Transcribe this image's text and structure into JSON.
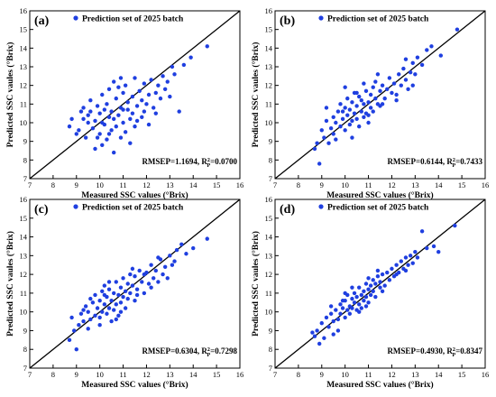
{
  "figure": {
    "xlabel": "Measured SSC values (°Brix)",
    "ylabel": "Predicted SSC vaules (°Brix)",
    "legend": "Prediction set of 2025 batch",
    "ticks": [
      "7",
      "8",
      "9",
      "10",
      "11",
      "12",
      "13",
      "14",
      "15",
      "16"
    ],
    "point_color": "#1f3fe0",
    "line_color": "#000000"
  },
  "chart_data": [
    {
      "type": "scatter",
      "panel": "(a)",
      "legend": "Prediction set of 2025 batch",
      "xlabel": "Measured SSC values (°Brix)",
      "ylabel": "Predicted SSC vaules (°Brix)",
      "xlim": [
        7,
        16
      ],
      "ylim": [
        7,
        16
      ],
      "reference_line": "y = x",
      "stats": {
        "rmsep_text": "RMSEP=1.1694, R",
        "r2_sup": "2",
        "r2_sub": "P",
        "r2_text": "=0.0700"
      },
      "points": [
        [
          8.7,
          9.8
        ],
        [
          8.8,
          10.2
        ],
        [
          9.0,
          9.4
        ],
        [
          9.1,
          9.6
        ],
        [
          9.2,
          10.6
        ],
        [
          9.3,
          10.8
        ],
        [
          9.4,
          9.2
        ],
        [
          9.5,
          10.0
        ],
        [
          9.5,
          10.4
        ],
        [
          9.6,
          11.2
        ],
        [
          9.7,
          9.7
        ],
        [
          9.8,
          10.1
        ],
        [
          9.8,
          8.6
        ],
        [
          9.9,
          10.9
        ],
        [
          10.0,
          9.4
        ],
        [
          10.0,
          10.5
        ],
        [
          10.1,
          11.5
        ],
        [
          10.1,
          8.8
        ],
        [
          10.2,
          9.9
        ],
        [
          10.2,
          10.7
        ],
        [
          10.3,
          11.0
        ],
        [
          10.3,
          9.1
        ],
        [
          10.4,
          10.3
        ],
        [
          10.4,
          11.8
        ],
        [
          10.5,
          9.6
        ],
        [
          10.5,
          10.6
        ],
        [
          10.6,
          12.2
        ],
        [
          10.6,
          8.4
        ],
        [
          10.7,
          11.3
        ],
        [
          10.7,
          9.8
        ],
        [
          10.8,
          10.4
        ],
        [
          10.8,
          11.9
        ],
        [
          10.9,
          9.2
        ],
        [
          10.9,
          10.8
        ],
        [
          11.0,
          11.6
        ],
        [
          11.0,
          10.0
        ],
        [
          11.1,
          12.0
        ],
        [
          11.1,
          9.5
        ],
        [
          11.2,
          10.7
        ],
        [
          11.2,
          11.1
        ],
        [
          11.3,
          10.2
        ],
        [
          11.3,
          8.9
        ],
        [
          11.4,
          11.4
        ],
        [
          11.4,
          10.5
        ],
        [
          11.5,
          12.4
        ],
        [
          11.5,
          9.8
        ],
        [
          11.6,
          10.9
        ],
        [
          11.7,
          11.7
        ],
        [
          11.8,
          10.3
        ],
        [
          11.8,
          11.2
        ],
        [
          11.9,
          12.1
        ],
        [
          11.9,
          10.6
        ],
        [
          12.0,
          11.0
        ],
        [
          12.1,
          11.5
        ],
        [
          12.1,
          9.9
        ],
        [
          12.2,
          12.3
        ],
        [
          12.3,
          10.8
        ],
        [
          12.4,
          11.6
        ],
        [
          12.5,
          12.0
        ],
        [
          12.6,
          11.3
        ],
        [
          12.7,
          12.5
        ],
        [
          12.8,
          11.8
        ],
        [
          12.9,
          12.2
        ],
        [
          13.0,
          11.4
        ],
        [
          13.1,
          13.0
        ],
        [
          13.2,
          12.6
        ],
        [
          13.4,
          10.6
        ],
        [
          13.6,
          13.1
        ],
        [
          13.9,
          13.5
        ],
        [
          14.6,
          14.1
        ],
        [
          9.6,
          10.6
        ],
        [
          10.1,
          10.0
        ],
        [
          10.6,
          10.2
        ],
        [
          11.0,
          10.7
        ],
        [
          9.3,
          10.2
        ],
        [
          10.4,
          9.4
        ],
        [
          11.6,
          10.1
        ],
        [
          12.4,
          10.5
        ],
        [
          10.9,
          12.4
        ],
        [
          9.9,
          9.2
        ]
      ]
    },
    {
      "type": "scatter",
      "panel": "(b)",
      "legend": "Prediction set of 2025 batch",
      "xlabel": "Measured SSC values (°Brix)",
      "ylabel": "Predicted SSC vaules (°Brix)",
      "xlim": [
        7,
        16
      ],
      "ylim": [
        7,
        16
      ],
      "reference_line": "y = x",
      "stats": {
        "rmsep_text": "RMSEP=0.6144, R",
        "r2_sup": "2",
        "r2_sub": "P",
        "r2_text": "=0.7433"
      },
      "points": [
        [
          8.7,
          8.6
        ],
        [
          8.8,
          8.9
        ],
        [
          8.9,
          7.8
        ],
        [
          9.0,
          9.6
        ],
        [
          9.1,
          9.2
        ],
        [
          9.2,
          10.1
        ],
        [
          9.3,
          8.9
        ],
        [
          9.4,
          9.7
        ],
        [
          9.5,
          10.3
        ],
        [
          9.5,
          9.4
        ],
        [
          9.6,
          10.0
        ],
        [
          9.7,
          10.6
        ],
        [
          9.8,
          9.8
        ],
        [
          9.8,
          11.0
        ],
        [
          9.9,
          10.2
        ],
        [
          10.0,
          9.6
        ],
        [
          10.0,
          10.8
        ],
        [
          10.1,
          10.4
        ],
        [
          10.1,
          11.3
        ],
        [
          10.2,
          9.9
        ],
        [
          10.2,
          10.7
        ],
        [
          10.3,
          11.1
        ],
        [
          10.3,
          10.1
        ],
        [
          10.4,
          10.5
        ],
        [
          10.4,
          11.6
        ],
        [
          10.5,
          10.2
        ],
        [
          10.5,
          10.9
        ],
        [
          10.6,
          11.4
        ],
        [
          10.6,
          9.8
        ],
        [
          10.7,
          10.6
        ],
        [
          10.7,
          11.2
        ],
        [
          10.8,
          10.3
        ],
        [
          10.8,
          11.0
        ],
        [
          10.9,
          11.7
        ],
        [
          10.9,
          10.5
        ],
        [
          11.0,
          11.1
        ],
        [
          11.0,
          10.0
        ],
        [
          11.1,
          11.5
        ],
        [
          11.1,
          10.8
        ],
        [
          11.2,
          11.9
        ],
        [
          11.2,
          10.6
        ],
        [
          11.3,
          11.3
        ],
        [
          11.3,
          12.2
        ],
        [
          11.4,
          11.0
        ],
        [
          11.5,
          11.7
        ],
        [
          11.5,
          10.9
        ],
        [
          11.6,
          12.0
        ],
        [
          11.7,
          11.3
        ],
        [
          11.8,
          11.8
        ],
        [
          11.9,
          12.4
        ],
        [
          12.0,
          11.6
        ],
        [
          12.1,
          12.1
        ],
        [
          12.2,
          11.5
        ],
        [
          12.3,
          12.6
        ],
        [
          12.4,
          12.0
        ],
        [
          12.5,
          12.9
        ],
        [
          12.6,
          12.3
        ],
        [
          12.7,
          11.8
        ],
        [
          12.8,
          12.7
        ],
        [
          12.9,
          13.2
        ],
        [
          13.0,
          12.6
        ],
        [
          13.1,
          13.5
        ],
        [
          13.3,
          13.1
        ],
        [
          13.5,
          13.9
        ],
        [
          13.7,
          14.1
        ],
        [
          14.1,
          13.6
        ],
        [
          14.8,
          15.0
        ],
        [
          9.6,
          9.1
        ],
        [
          10.0,
          11.9
        ],
        [
          10.5,
          11.6
        ],
        [
          11.0,
          10.4
        ],
        [
          11.4,
          12.6
        ],
        [
          12.2,
          11.2
        ],
        [
          12.6,
          13.4
        ],
        [
          10.3,
          9.2
        ],
        [
          10.8,
          12.1
        ],
        [
          11.6,
          11.0
        ],
        [
          9.2,
          10.8
        ],
        [
          12.9,
          12.0
        ],
        [
          9.9,
          10.6
        ]
      ]
    },
    {
      "type": "scatter",
      "panel": "(c)",
      "legend": "Prediction set of 2025 batch",
      "xlabel": "Measured SSC values (°Brix)",
      "ylabel": "Predicted SSC vaules (°Brix)",
      "xlim": [
        7,
        16
      ],
      "ylim": [
        7,
        16
      ],
      "reference_line": "y = x",
      "stats": {
        "rmsep_text": "RMSEP=0.6304, R",
        "r2_sup": "2",
        "r2_sub": "P",
        "r2_text": "=0.7298"
      },
      "points": [
        [
          8.7,
          8.5
        ],
        [
          8.8,
          9.7
        ],
        [
          8.9,
          9.0
        ],
        [
          9.0,
          8.0
        ],
        [
          9.1,
          9.3
        ],
        [
          9.2,
          9.9
        ],
        [
          9.3,
          9.5
        ],
        [
          9.4,
          10.3
        ],
        [
          9.5,
          9.1
        ],
        [
          9.5,
          10.0
        ],
        [
          9.6,
          9.6
        ],
        [
          9.7,
          10.5
        ],
        [
          9.8,
          9.8
        ],
        [
          9.8,
          10.9
        ],
        [
          9.9,
          10.2
        ],
        [
          10.0,
          9.7
        ],
        [
          10.0,
          10.6
        ],
        [
          10.1,
          11.1
        ],
        [
          10.1,
          10.0
        ],
        [
          10.2,
          10.4
        ],
        [
          10.2,
          11.4
        ],
        [
          10.3,
          9.9
        ],
        [
          10.3,
          10.8
        ],
        [
          10.4,
          10.2
        ],
        [
          10.4,
          11.2
        ],
        [
          10.5,
          10.6
        ],
        [
          10.5,
          9.5
        ],
        [
          10.6,
          11.0
        ],
        [
          10.6,
          10.1
        ],
        [
          10.7,
          11.6
        ],
        [
          10.7,
          10.4
        ],
        [
          10.8,
          10.9
        ],
        [
          10.8,
          9.8
        ],
        [
          10.9,
          11.3
        ],
        [
          10.9,
          10.5
        ],
        [
          11.0,
          11.8
        ],
        [
          11.0,
          10.8
        ],
        [
          11.1,
          11.1
        ],
        [
          11.1,
          10.2
        ],
        [
          11.2,
          11.5
        ],
        [
          11.2,
          10.7
        ],
        [
          11.3,
          12.0
        ],
        [
          11.3,
          11.0
        ],
        [
          11.4,
          11.4
        ],
        [
          11.5,
          10.6
        ],
        [
          11.5,
          11.9
        ],
        [
          11.6,
          11.2
        ],
        [
          11.7,
          12.2
        ],
        [
          11.8,
          11.6
        ],
        [
          11.9,
          11.0
        ],
        [
          12.0,
          12.1
        ],
        [
          12.1,
          11.5
        ],
        [
          12.2,
          12.5
        ],
        [
          12.3,
          11.8
        ],
        [
          12.4,
          12.2
        ],
        [
          12.5,
          11.6
        ],
        [
          12.6,
          12.8
        ],
        [
          12.7,
          12.0
        ],
        [
          12.8,
          12.4
        ],
        [
          12.9,
          11.8
        ],
        [
          13.0,
          13.0
        ],
        [
          13.1,
          12.5
        ],
        [
          13.3,
          13.3
        ],
        [
          13.5,
          13.6
        ],
        [
          13.7,
          13.1
        ],
        [
          14.0,
          13.4
        ],
        [
          14.6,
          13.9
        ],
        [
          9.6,
          10.7
        ],
        [
          10.0,
          9.3
        ],
        [
          10.4,
          11.6
        ],
        [
          10.9,
          10.0
        ],
        [
          11.4,
          12.3
        ],
        [
          11.9,
          12.0
        ],
        [
          12.5,
          12.9
        ],
        [
          9.3,
          10.1
        ],
        [
          10.7,
          9.6
        ],
        [
          11.6,
          10.9
        ],
        [
          12.2,
          11.3
        ],
        [
          13.2,
          12.7
        ],
        [
          10.2,
          10.9
        ]
      ]
    },
    {
      "type": "scatter",
      "panel": "(d)",
      "legend": "Prediction set of 2025 batch",
      "xlabel": "Measured SSC values (°Brix)",
      "ylabel": "Predicted SSC vaules (°Brix)",
      "xlim": [
        7,
        16
      ],
      "ylim": [
        7,
        16
      ],
      "reference_line": "y = x",
      "stats": {
        "rmsep_text": "RMSEP=0.4930, R",
        "r2_sup": "2",
        "r2_sub": "P",
        "r2_text": "=0.8347"
      },
      "points": [
        [
          8.6,
          8.9
        ],
        [
          8.7,
          8.7
        ],
        [
          8.8,
          9.0
        ],
        [
          8.9,
          8.3
        ],
        [
          9.0,
          9.4
        ],
        [
          9.1,
          8.6
        ],
        [
          9.2,
          9.7
        ],
        [
          9.3,
          9.2
        ],
        [
          9.4,
          9.9
        ],
        [
          9.5,
          9.5
        ],
        [
          9.5,
          8.8
        ],
        [
          9.6,
          10.1
        ],
        [
          9.7,
          9.6
        ],
        [
          9.8,
          10.4
        ],
        [
          9.8,
          9.9
        ],
        [
          9.9,
          10.2
        ],
        [
          10.0,
          9.7
        ],
        [
          10.0,
          10.6
        ],
        [
          10.1,
          10.1
        ],
        [
          10.1,
          10.9
        ],
        [
          10.2,
          10.3
        ],
        [
          10.2,
          9.9
        ],
        [
          10.3,
          10.7
        ],
        [
          10.3,
          10.2
        ],
        [
          10.4,
          11.0
        ],
        [
          10.4,
          10.5
        ],
        [
          10.5,
          10.1
        ],
        [
          10.5,
          10.8
        ],
        [
          10.6,
          11.3
        ],
        [
          10.6,
          10.4
        ],
        [
          10.7,
          10.9
        ],
        [
          10.7,
          10.2
        ],
        [
          10.8,
          11.1
        ],
        [
          10.8,
          10.6
        ],
        [
          10.9,
          11.5
        ],
        [
          10.9,
          10.8
        ],
        [
          11.0,
          11.2
        ],
        [
          11.0,
          10.5
        ],
        [
          11.1,
          11.4
        ],
        [
          11.1,
          10.9
        ],
        [
          11.2,
          11.7
        ],
        [
          11.2,
          11.1
        ],
        [
          11.3,
          11.5
        ],
        [
          11.3,
          10.8
        ],
        [
          11.4,
          11.9
        ],
        [
          11.5,
          11.3
        ],
        [
          11.5,
          11.6
        ],
        [
          11.6,
          12.0
        ],
        [
          11.7,
          11.4
        ],
        [
          11.8,
          12.1
        ],
        [
          11.9,
          11.7
        ],
        [
          12.0,
          12.3
        ],
        [
          12.1,
          11.9
        ],
        [
          12.2,
          12.5
        ],
        [
          12.3,
          12.1
        ],
        [
          12.4,
          12.7
        ],
        [
          12.5,
          12.3
        ],
        [
          12.6,
          12.9
        ],
        [
          12.7,
          12.5
        ],
        [
          12.8,
          13.0
        ],
        [
          12.9,
          12.6
        ],
        [
          13.0,
          13.2
        ],
        [
          13.1,
          12.9
        ],
        [
          13.3,
          14.3
        ],
        [
          13.5,
          13.4
        ],
        [
          13.8,
          13.5
        ],
        [
          14.0,
          13.2
        ],
        [
          14.7,
          14.6
        ],
        [
          9.4,
          10.3
        ],
        [
          10.0,
          11.0
        ],
        [
          10.6,
          10.0
        ],
        [
          11.0,
          11.8
        ],
        [
          11.6,
          11.1
        ],
        [
          12.2,
          12.0
        ],
        [
          9.7,
          9.0
        ],
        [
          10.3,
          11.3
        ],
        [
          10.9,
          10.3
        ],
        [
          11.4,
          12.2
        ],
        [
          12.6,
          12.2
        ],
        [
          9.9,
          10.6
        ]
      ]
    }
  ]
}
